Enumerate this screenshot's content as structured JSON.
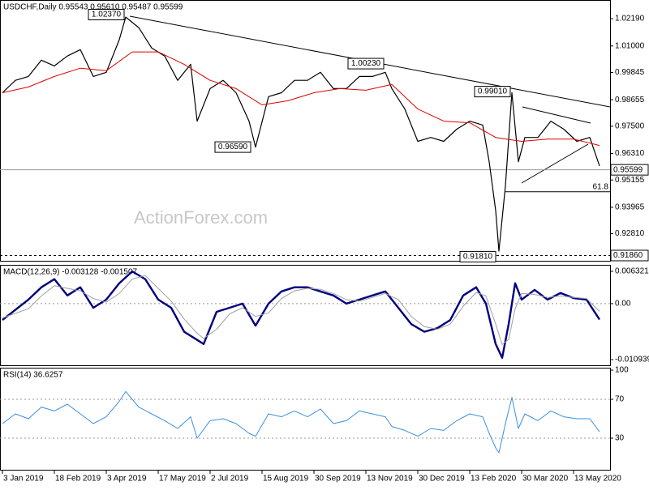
{
  "chart_data": [
    {
      "type": "line",
      "title": "USDCHF,Daily  0.95543 0.95610 0.95487 0.95599",
      "watermark": "ActionForex.com",
      "xlim": [
        -1.5,
        374.5
      ],
      "xticks": [
        {
          "value": 0,
          "label": "3 Jan 2019"
        },
        {
          "value": 32,
          "label": "18 Feb 2019"
        },
        {
          "value": 64,
          "label": "3 Apr 2019"
        },
        {
          "value": 96,
          "label": "17 May 2019"
        },
        {
          "value": 128,
          "label": "2 Jul 2019"
        },
        {
          "value": 160,
          "label": "15 Aug 2019"
        },
        {
          "value": 192,
          "label": "30 Sep 2019"
        },
        {
          "value": 224,
          "label": "13 Nov 2019"
        },
        {
          "value": 256,
          "label": "30 Dec 2019"
        },
        {
          "value": 288,
          "label": "13 Feb 2020"
        },
        {
          "value": 320,
          "label": "30 Mar 2020"
        },
        {
          "value": 352,
          "label": "13 May 2020"
        }
      ],
      "ylim": [
        0.9163,
        1.0297
      ],
      "yticks": [
        {
          "value": 1.0219,
          "label": "1.02190"
        },
        {
          "value": 1.01,
          "label": "1.01000"
        },
        0.99845,
        0.98655,
        {
          "value": 0.975,
          "label": "0.97500"
        },
        {
          "value": 0.9631,
          "label": "0.96310"
        },
        0.95155,
        0.93965,
        {
          "value": 0.9281,
          "label": "0.92810"
        }
      ],
      "series": [
        {
          "color": "#000000",
          "width": 1.2,
          "x": [
            0,
            8,
            16,
            24,
            32,
            40,
            48,
            56,
            64,
            72,
            76,
            84,
            92,
            100,
            108,
            116,
            120,
            128,
            136,
            144,
            152,
            156,
            164,
            172,
            180,
            188,
            196,
            204,
            212,
            220,
            228,
            236,
            240,
            248,
            256,
            264,
            272,
            280,
            288,
            296,
            300,
            304,
            306,
            310,
            314,
            318,
            322,
            330,
            338,
            346,
            354,
            362,
            368
          ],
          "values": [
            0.9896,
            0.995,
            0.9967,
            1.0038,
            1.0013,
            1.0056,
            1.0084,
            0.9967,
            0.9985,
            1.0127,
            1.0226,
            1.018,
            1.0091,
            1.0056,
            0.995,
            1.002,
            0.9772,
            0.9914,
            0.995,
            0.9896,
            0.9772,
            0.9659,
            0.9879,
            0.9896,
            0.995,
            0.995,
            0.9985,
            0.9914,
            0.9914,
            0.9967,
            0.9967,
            0.9985,
            0.9914,
            0.9825,
            0.9684,
            0.9701,
            0.9684,
            0.9737,
            0.9772,
            0.9755,
            0.9595,
            0.9382,
            0.9205,
            0.9489,
            0.9896,
            0.9595,
            0.9701,
            0.9701,
            0.9772,
            0.9737,
            0.9684,
            0.9701,
            0.9577
          ]
        },
        {
          "color": "#e00000",
          "width": 1,
          "x": [
            0,
            16,
            32,
            48,
            64,
            80,
            96,
            112,
            128,
            144,
            160,
            176,
            192,
            208,
            224,
            240,
            256,
            272,
            288,
            304,
            320,
            336,
            352,
            368
          ],
          "values": [
            0.9896,
            0.9921,
            0.9967,
            1.0003,
            0.9992,
            1.0074,
            1.0074,
            1.002,
            0.995,
            0.9914,
            0.9843,
            0.9861,
            0.9896,
            0.9914,
            0.9907,
            0.9932,
            0.9825,
            0.9772,
            0.9765,
            0.9701,
            0.9684,
            0.9694,
            0.9694,
            0.9666
          ]
        }
      ],
      "annotations": [
        {
          "x": 76,
          "value": 1.0237,
          "label": "1.02370"
        },
        {
          "x": 154,
          "value": 0.9659,
          "label": "0.96590"
        },
        {
          "x": 236,
          "value": 1.0023,
          "label": "1.00230"
        },
        {
          "x": 314,
          "value": 0.9901,
          "label": "0.99010"
        },
        {
          "x": 305,
          "value": 0.9181,
          "label": "0.91810"
        }
      ],
      "levels": [
        {
          "value": 0.95599,
          "label": "0.95599",
          "style": "solid"
        },
        {
          "value": 0.9186,
          "label": "0.91860",
          "style": "dashed"
        }
      ],
      "fib_level": {
        "value": 0.9464,
        "fib": 61.8,
        "from": 310
      }
    },
    {
      "type": "line",
      "title": "MACD(12,26,9) -0.003128 -0.001507",
      "ylim": [
        -0.01205,
        0.00743
      ],
      "yticks": [
        0.006321,
        {
          "value": 0,
          "label": "0.00"
        },
        -0.010939
      ],
      "dotted_levels": [
        0
      ],
      "series": [
        {
          "color": "#00007f",
          "width": 2.4,
          "x": [
            0,
            16,
            24,
            32,
            40,
            48,
            56,
            64,
            72,
            80,
            88,
            96,
            104,
            112,
            120,
            124,
            132,
            140,
            148,
            156,
            164,
            172,
            180,
            188,
            196,
            204,
            212,
            220,
            228,
            236,
            244,
            252,
            260,
            268,
            276,
            284,
            292,
            298,
            304,
            308,
            312,
            316,
            320,
            328,
            336,
            344,
            352,
            360,
            368
          ],
          "values": [
            -0.0032,
            0.0008,
            0.0032,
            0.0048,
            0.0016,
            0.0032,
            -0.0008,
            0.0008,
            0.004,
            0.0063,
            0.0048,
            0.0008,
            -0.0008,
            -0.0055,
            -0.0071,
            -0.0079,
            -0.0016,
            -0.0008,
            0,
            -0.0043,
            0,
            0.0024,
            0.0032,
            0.0032,
            0.0024,
            0.0016,
            0,
            0.0008,
            0.0016,
            0.0024,
            -0.0008,
            -0.004,
            -0.0055,
            -0.0048,
            -0.0032,
            0.0016,
            0.0032,
            0,
            -0.0079,
            -0.0106,
            -0.004,
            0.004,
            0.0008,
            0.0027,
            0.0008,
            0.0021,
            0.0011,
            0.0008,
            -0.0031
          ]
        },
        {
          "color": "#a0a0a0",
          "width": 1,
          "x": [
            0,
            16,
            24,
            32,
            40,
            48,
            56,
            64,
            72,
            80,
            88,
            96,
            104,
            112,
            120,
            124,
            132,
            140,
            148,
            156,
            164,
            172,
            180,
            188,
            196,
            204,
            212,
            220,
            228,
            236,
            244,
            252,
            260,
            268,
            276,
            284,
            292,
            298,
            304,
            308,
            312,
            316,
            320,
            328,
            336,
            344,
            352,
            360,
            368
          ],
          "values": [
            -0.0028,
            -0.001,
            0.0015,
            0.0035,
            0.003,
            0.0025,
            0.001,
            0.0003,
            0.002,
            0.0048,
            0.0055,
            0.003,
            0.0005,
            -0.003,
            -0.0058,
            -0.0068,
            -0.005,
            -0.002,
            -0.0008,
            -0.0025,
            -0.0018,
            0.001,
            0.0025,
            0.003,
            0.0028,
            0.002,
            0.0008,
            0.0005,
            0.0012,
            0.002,
            0.0008,
            -0.0025,
            -0.0045,
            -0.005,
            -0.004,
            -0.0005,
            0.0022,
            0.0015,
            -0.004,
            -0.008,
            -0.007,
            -0.001,
            0.002,
            0.0018,
            0.0012,
            0.0015,
            0.0012,
            0.001,
            -0.0015
          ]
        }
      ]
    },
    {
      "type": "line",
      "title": "RSI(14) 36.6257",
      "ylim": [
        -2.5,
        101.7
      ],
      "yticks": [
        100,
        70,
        30
      ],
      "dotted_levels": [
        70,
        30
      ],
      "series": [
        {
          "color": "#3b8fe0",
          "width": 1,
          "x": [
            0,
            8,
            16,
            24,
            32,
            40,
            48,
            56,
            64,
            72,
            76,
            84,
            92,
            100,
            108,
            116,
            120,
            128,
            136,
            144,
            152,
            156,
            164,
            172,
            180,
            188,
            196,
            204,
            212,
            220,
            228,
            236,
            240,
            248,
            256,
            264,
            272,
            280,
            288,
            296,
            300,
            304,
            306,
            310,
            314,
            318,
            322,
            330,
            338,
            346,
            354,
            362,
            368
          ],
          "values": [
            45,
            55,
            50,
            62,
            58,
            65,
            55,
            45,
            52,
            68,
            78,
            62,
            55,
            48,
            40,
            52,
            30,
            48,
            50,
            45,
            35,
            32,
            55,
            52,
            58,
            52,
            60,
            45,
            48,
            58,
            55,
            52,
            42,
            38,
            32,
            40,
            38,
            48,
            55,
            52,
            35,
            20,
            15,
            45,
            72,
            40,
            55,
            48,
            58,
            52,
            50,
            50,
            36.6257
          ]
        }
      ]
    }
  ]
}
